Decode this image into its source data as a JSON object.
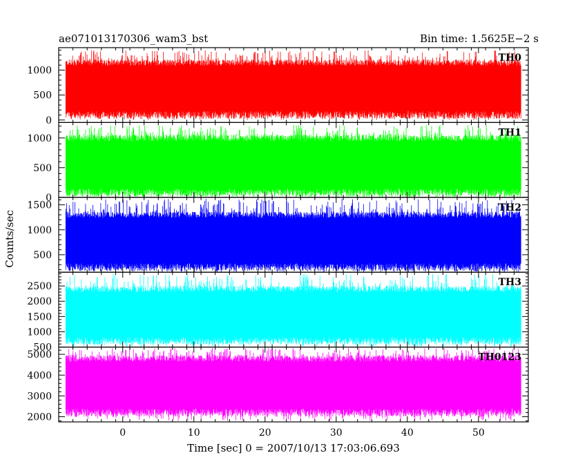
{
  "header": {
    "title": "ae071013170306_wam3_bst",
    "bin_time": "Bin time: 1.5625E−2 s"
  },
  "chart_data": {
    "type": "line",
    "render": "light curve (densely sampled counts/sec vs time, rendered as vertical strokes)",
    "xlabel": "Time [sec] 0 = 2007/10/13 17:03:06.693",
    "ylabel": "Counts/sec",
    "xlim": [
      -9,
      57
    ],
    "x_data_range": [
      -8,
      56
    ],
    "x_ticks": [
      0,
      10,
      20,
      30,
      40,
      50
    ],
    "grid": false,
    "panels": [
      {
        "name": "TH0",
        "color": "#ff0000",
        "ylim": [
          -50,
          1450
        ],
        "yticks": [
          0,
          500,
          1000
        ],
        "typical_range": [
          100,
          1150
        ],
        "peak_max": 1400,
        "min": 0
      },
      {
        "name": "TH1",
        "color": "#00ff00",
        "ylim": [
          0,
          1260
        ],
        "yticks": [
          0,
          500,
          1000
        ],
        "typical_range": [
          80,
          1000
        ],
        "peak_max": 1220,
        "min": 0
      },
      {
        "name": "TH2",
        "color": "#0000ff",
        "ylim": [
          150,
          1650
        ],
        "yticks": [
          500,
          1000,
          1500
        ],
        "typical_range": [
          250,
          1300
        ],
        "peak_max": 1620,
        "min": 150
      },
      {
        "name": "TH3",
        "color": "#00ffff",
        "ylim": [
          500,
          2950
        ],
        "yticks": [
          500,
          1000,
          1500,
          2000,
          2500
        ],
        "typical_range": [
          700,
          2400
        ],
        "peak_max": 2900,
        "min": 500
      },
      {
        "name": "TH0123",
        "color": "#ff00ff",
        "ylim": [
          1750,
          5350
        ],
        "yticks": [
          2000,
          3000,
          4000,
          5000
        ],
        "typical_range": [
          2200,
          4800
        ],
        "peak_max": 5300,
        "min": 1800
      }
    ]
  }
}
